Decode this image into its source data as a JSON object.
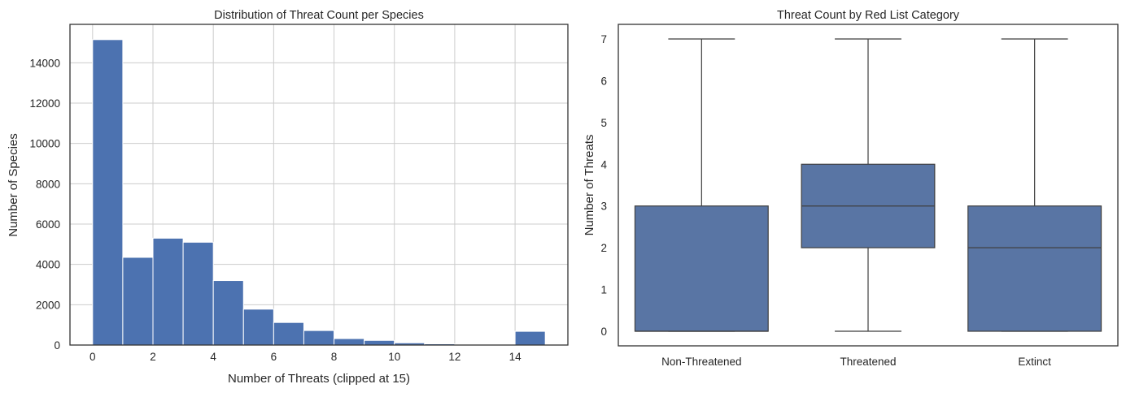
{
  "chart_data": [
    {
      "type": "bar",
      "title": "Distribution of Threat Count per Species",
      "xlabel": "Number of Threats (clipped at 15)",
      "ylabel": "Number of Species",
      "bin_edges": [
        0,
        1,
        2,
        3,
        4,
        5,
        6,
        7,
        8,
        9,
        10,
        11,
        12,
        13,
        14,
        15
      ],
      "values": [
        15150,
        4350,
        5300,
        5100,
        3200,
        1780,
        1120,
        720,
        320,
        230,
        110,
        60,
        10,
        10,
        680
      ],
      "xlim": [
        -0.75,
        15.75
      ],
      "ylim": [
        0,
        15907
      ],
      "xticks": [
        0,
        2,
        4,
        6,
        8,
        10,
        12,
        14
      ],
      "yticks": [
        0,
        2000,
        4000,
        6000,
        8000,
        10000,
        12000,
        14000
      ],
      "grid": true,
      "color": "#4c72b0"
    },
    {
      "type": "box",
      "title": "Threat Count by Red List Category",
      "xlabel": "",
      "ylabel": "Number of Threats",
      "categories": [
        "Non-Threatened",
        "Threatened",
        "Extinct"
      ],
      "boxes": [
        {
          "whisker_low": 0,
          "q1": 0,
          "median": 0,
          "q3": 3,
          "whisker_high": 7
        },
        {
          "whisker_low": 0,
          "q1": 2,
          "median": 3,
          "q3": 4,
          "whisker_high": 7
        },
        {
          "whisker_low": 0,
          "q1": 0,
          "median": 2,
          "q3": 3,
          "whisker_high": 7
        }
      ],
      "ylim": [
        -0.35,
        7.35
      ],
      "yticks": [
        0,
        1,
        2,
        3,
        4,
        5,
        6,
        7
      ],
      "grid": false,
      "color": "#5975a4"
    }
  ]
}
